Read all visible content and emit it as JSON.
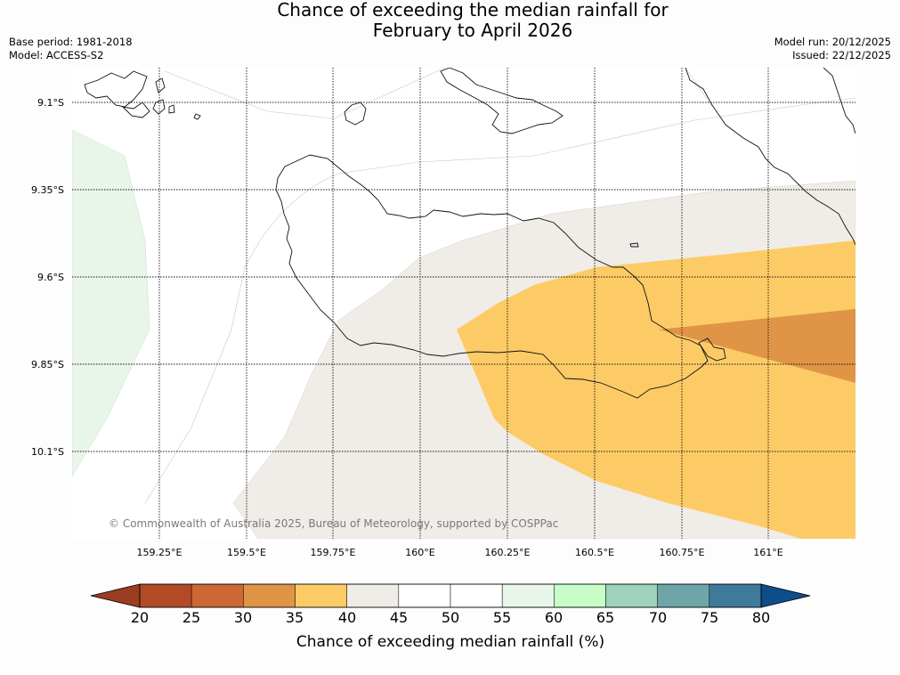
{
  "title": {
    "line1": "Chance of exceeding the median rainfall for",
    "line2": "February to April 2026"
  },
  "metadata": {
    "base_period": "Base period: 1981-2018",
    "model": "Model: ACCESS-S2",
    "model_run": "Model run: 20/12/2025",
    "issued": "Issued: 22/12/2025"
  },
  "map": {
    "latitude_labels": [
      "9.1°S",
      "9.35°S",
      "9.6°S",
      "9.85°S",
      "10.1°S"
    ],
    "longitude_labels": [
      "159.25°E",
      "159.5°E",
      "159.75°E",
      "160°E",
      "160.25°E",
      "160.5°E",
      "160.75°E",
      "161°E"
    ],
    "copyright": "© Commonwealth of Australia 2025, Bureau of Meteorology, supported by COSPPac"
  },
  "colorbar": {
    "title": "Chance of exceeding median rainfall (%)",
    "tick_labels": [
      "20",
      "25",
      "30",
      "35",
      "40",
      "45",
      "50",
      "55",
      "60",
      "65",
      "70",
      "75",
      "80"
    ],
    "under_color": "#9b3d22",
    "over_color": "#0e4c8a",
    "colors": [
      "#b34a26",
      "#cd6734",
      "#e09446",
      "#fdcb66",
      "#f0ece7",
      "#ffffff",
      "#ffffff",
      "#e8f5e9",
      "#c8fdc8",
      "#9dd2bc",
      "#6ea5a8",
      "#3f7a9c"
    ]
  },
  "category_colors": {
    "35-40": "#fdcb66",
    "30-35": "#e09446",
    "40-45": "#f0ece7",
    "55-60": "#e8f5e9"
  }
}
